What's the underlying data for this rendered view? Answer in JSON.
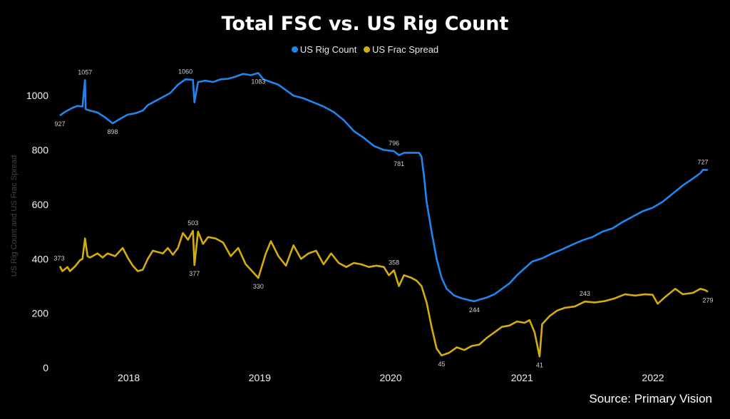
{
  "chart_data": {
    "type": "line",
    "title": "Total FSC vs. US Rig Count",
    "ylabel": "US Rig Count and US Frac Spread",
    "xlabel": "",
    "ylim": [
      0,
      1100
    ],
    "y_ticks": [
      0,
      200,
      400,
      600,
      800,
      1000
    ],
    "x_ticks": [
      "2018",
      "2019",
      "2020",
      "2021",
      "2022"
    ],
    "x_range": [
      "2017-06-23",
      "2022-06-03"
    ],
    "grid": false,
    "legend": "top-center",
    "source": "Source: Primary Vision",
    "series": [
      {
        "name": "US Rig Count",
        "color": "#1f86f0",
        "points": [
          [
            "2017-06-23",
            927
          ],
          [
            "2017-07-07",
            940
          ],
          [
            "2017-07-28",
            955
          ],
          [
            "2017-08-11",
            962
          ],
          [
            "2017-08-25",
            960
          ],
          [
            "2017-09-01",
            1057
          ],
          [
            "2017-09-03",
            950
          ],
          [
            "2017-09-15",
            945
          ],
          [
            "2017-10-06",
            938
          ],
          [
            "2017-10-27",
            920
          ],
          [
            "2017-11-17",
            898
          ],
          [
            "2017-12-08",
            915
          ],
          [
            "2017-12-29",
            930
          ],
          [
            "2018-01-19",
            935
          ],
          [
            "2018-02-09",
            945
          ],
          [
            "2018-02-23",
            965
          ],
          [
            "2018-03-16",
            980
          ],
          [
            "2018-04-06",
            995
          ],
          [
            "2018-04-27",
            1010
          ],
          [
            "2018-05-18",
            1040
          ],
          [
            "2018-06-08",
            1060
          ],
          [
            "2018-06-29",
            1058
          ],
          [
            "2018-07-03",
            975
          ],
          [
            "2018-07-13",
            1050
          ],
          [
            "2018-08-03",
            1055
          ],
          [
            "2018-08-24",
            1050
          ],
          [
            "2018-09-14",
            1060
          ],
          [
            "2018-10-05",
            1062
          ],
          [
            "2018-10-26",
            1070
          ],
          [
            "2018-11-16",
            1080
          ],
          [
            "2018-12-07",
            1075
          ],
          [
            "2018-12-28",
            1083
          ],
          [
            "2019-01-11",
            1060
          ],
          [
            "2019-02-01",
            1050
          ],
          [
            "2019-02-22",
            1040
          ],
          [
            "2019-03-15",
            1020
          ],
          [
            "2019-04-05",
            1000
          ],
          [
            "2019-05-03",
            990
          ],
          [
            "2019-05-31",
            975
          ],
          [
            "2019-06-28",
            960
          ],
          [
            "2019-07-26",
            940
          ],
          [
            "2019-08-23",
            910
          ],
          [
            "2019-09-20",
            870
          ],
          [
            "2019-10-18",
            845
          ],
          [
            "2019-11-15",
            815
          ],
          [
            "2019-12-13",
            800
          ],
          [
            "2020-01-10",
            796
          ],
          [
            "2020-01-24",
            781
          ],
          [
            "2020-02-07",
            790
          ],
          [
            "2020-02-28",
            790
          ],
          [
            "2020-03-20",
            790
          ],
          [
            "2020-03-27",
            775
          ],
          [
            "2020-04-03",
            700
          ],
          [
            "2020-04-10",
            610
          ],
          [
            "2020-04-24",
            500
          ],
          [
            "2020-05-08",
            400
          ],
          [
            "2020-05-22",
            330
          ],
          [
            "2020-06-05",
            290
          ],
          [
            "2020-06-26",
            265
          ],
          [
            "2020-07-17",
            255
          ],
          [
            "2020-08-07",
            248
          ],
          [
            "2020-08-21",
            244
          ],
          [
            "2020-09-04",
            250
          ],
          [
            "2020-09-25",
            258
          ],
          [
            "2020-10-16",
            270
          ],
          [
            "2020-11-06",
            290
          ],
          [
            "2020-11-27",
            310
          ],
          [
            "2020-12-18",
            340
          ],
          [
            "2021-01-08",
            365
          ],
          [
            "2021-01-29",
            390
          ],
          [
            "2021-02-26",
            402
          ],
          [
            "2021-03-26",
            420
          ],
          [
            "2021-04-23",
            435
          ],
          [
            "2021-05-21",
            452
          ],
          [
            "2021-06-18",
            468
          ],
          [
            "2021-07-16",
            480
          ],
          [
            "2021-08-13",
            500
          ],
          [
            "2021-09-10",
            512
          ],
          [
            "2021-10-08",
            535
          ],
          [
            "2021-11-05",
            555
          ],
          [
            "2021-12-03",
            575
          ],
          [
            "2021-12-31",
            588
          ],
          [
            "2022-01-28",
            610
          ],
          [
            "2022-02-25",
            640
          ],
          [
            "2022-03-25",
            670
          ],
          [
            "2022-04-22",
            695
          ],
          [
            "2022-05-13",
            715
          ],
          [
            "2022-05-20",
            727
          ],
          [
            "2022-06-03",
            727
          ]
        ],
        "labels": [
          {
            "date": "2017-06-23",
            "value": 927,
            "text": "927",
            "pos": "below"
          },
          {
            "date": "2017-09-01",
            "value": 1057,
            "text": "1057",
            "pos": "above"
          },
          {
            "date": "2017-11-17",
            "value": 898,
            "text": "898",
            "pos": "below"
          },
          {
            "date": "2018-06-08",
            "value": 1060,
            "text": "1060",
            "pos": "above"
          },
          {
            "date": "2018-12-28",
            "value": 1083,
            "text": "1083",
            "pos": "below"
          },
          {
            "date": "2020-01-10",
            "value": 796,
            "text": "796",
            "pos": "above"
          },
          {
            "date": "2020-01-24",
            "value": 781,
            "text": "781",
            "pos": "below"
          },
          {
            "date": "2020-08-21",
            "value": 244,
            "text": "244",
            "pos": "below"
          },
          {
            "date": "2022-05-20",
            "value": 727,
            "text": "727",
            "pos": "above"
          }
        ]
      },
      {
        "name": "US Frac Spread",
        "color": "#d4ac0d",
        "points": [
          [
            "2017-06-23",
            373
          ],
          [
            "2017-06-30",
            355
          ],
          [
            "2017-07-14",
            370
          ],
          [
            "2017-07-21",
            355
          ],
          [
            "2017-08-04",
            372
          ],
          [
            "2017-08-18",
            395
          ],
          [
            "2017-08-25",
            400
          ],
          [
            "2017-09-01",
            475
          ],
          [
            "2017-09-08",
            410
          ],
          [
            "2017-09-15",
            405
          ],
          [
            "2017-10-06",
            420
          ],
          [
            "2017-10-20",
            405
          ],
          [
            "2017-11-03",
            420
          ],
          [
            "2017-11-24",
            410
          ],
          [
            "2017-12-15",
            440
          ],
          [
            "2017-12-29",
            405
          ],
          [
            "2018-01-12",
            375
          ],
          [
            "2018-01-26",
            355
          ],
          [
            "2018-02-09",
            360
          ],
          [
            "2018-02-23",
            400
          ],
          [
            "2018-03-09",
            430
          ],
          [
            "2018-03-23",
            425
          ],
          [
            "2018-04-06",
            420
          ],
          [
            "2018-04-20",
            440
          ],
          [
            "2018-05-04",
            415
          ],
          [
            "2018-05-18",
            440
          ],
          [
            "2018-06-01",
            495
          ],
          [
            "2018-06-15",
            470
          ],
          [
            "2018-06-29",
            503
          ],
          [
            "2018-07-03",
            377
          ],
          [
            "2018-07-13",
            500
          ],
          [
            "2018-07-27",
            455
          ],
          [
            "2018-08-10",
            480
          ],
          [
            "2018-08-31",
            475
          ],
          [
            "2018-09-21",
            460
          ],
          [
            "2018-10-12",
            410
          ],
          [
            "2018-11-02",
            440
          ],
          [
            "2018-11-23",
            380
          ],
          [
            "2018-12-07",
            360
          ],
          [
            "2018-12-28",
            330
          ],
          [
            "2019-01-18",
            420
          ],
          [
            "2019-02-01",
            465
          ],
          [
            "2019-02-22",
            410
          ],
          [
            "2019-03-15",
            375
          ],
          [
            "2019-04-05",
            450
          ],
          [
            "2019-04-26",
            400
          ],
          [
            "2019-05-17",
            420
          ],
          [
            "2019-06-07",
            430
          ],
          [
            "2019-06-28",
            380
          ],
          [
            "2019-07-19",
            420
          ],
          [
            "2019-08-09",
            385
          ],
          [
            "2019-08-30",
            370
          ],
          [
            "2019-09-20",
            385
          ],
          [
            "2019-10-11",
            380
          ],
          [
            "2019-11-01",
            370
          ],
          [
            "2019-11-22",
            375
          ],
          [
            "2019-12-13",
            370
          ],
          [
            "2019-12-27",
            340
          ],
          [
            "2020-01-10",
            358
          ],
          [
            "2020-01-24",
            300
          ],
          [
            "2020-02-07",
            340
          ],
          [
            "2020-02-28",
            330
          ],
          [
            "2020-03-13",
            320
          ],
          [
            "2020-03-27",
            300
          ],
          [
            "2020-04-10",
            240
          ],
          [
            "2020-04-24",
            150
          ],
          [
            "2020-05-08",
            70
          ],
          [
            "2020-05-22",
            45
          ],
          [
            "2020-06-12",
            55
          ],
          [
            "2020-07-03",
            75
          ],
          [
            "2020-07-24",
            65
          ],
          [
            "2020-08-14",
            80
          ],
          [
            "2020-09-04",
            85
          ],
          [
            "2020-09-25",
            110
          ],
          [
            "2020-10-16",
            130
          ],
          [
            "2020-11-06",
            150
          ],
          [
            "2020-11-27",
            155
          ],
          [
            "2020-12-18",
            170
          ],
          [
            "2021-01-08",
            165
          ],
          [
            "2021-01-22",
            175
          ],
          [
            "2021-02-05",
            130
          ],
          [
            "2021-02-19",
            41
          ],
          [
            "2021-02-26",
            160
          ],
          [
            "2021-03-19",
            190
          ],
          [
            "2021-04-09",
            210
          ],
          [
            "2021-04-30",
            220
          ],
          [
            "2021-05-28",
            225
          ],
          [
            "2021-06-25",
            243
          ],
          [
            "2021-07-23",
            240
          ],
          [
            "2021-08-20",
            245
          ],
          [
            "2021-09-17",
            255
          ],
          [
            "2021-10-15",
            270
          ],
          [
            "2021-11-12",
            265
          ],
          [
            "2021-12-10",
            270
          ],
          [
            "2021-12-31",
            268
          ],
          [
            "2022-01-14",
            235
          ],
          [
            "2022-02-04",
            260
          ],
          [
            "2022-03-04",
            290
          ],
          [
            "2022-03-25",
            270
          ],
          [
            "2022-04-22",
            275
          ],
          [
            "2022-05-13",
            290
          ],
          [
            "2022-05-27",
            285
          ],
          [
            "2022-06-03",
            279
          ]
        ],
        "labels": [
          {
            "date": "2017-06-23",
            "value": 373,
            "text": "373",
            "pos": "above-left"
          },
          {
            "date": "2018-06-29",
            "value": 503,
            "text": "503",
            "pos": "above"
          },
          {
            "date": "2018-07-03",
            "value": 377,
            "text": "377",
            "pos": "below"
          },
          {
            "date": "2018-12-28",
            "value": 330,
            "text": "330",
            "pos": "below"
          },
          {
            "date": "2020-01-10",
            "value": 358,
            "text": "358",
            "pos": "above"
          },
          {
            "date": "2020-05-22",
            "value": 45,
            "text": "45",
            "pos": "below"
          },
          {
            "date": "2021-02-19",
            "value": 41,
            "text": "41",
            "pos": "below"
          },
          {
            "date": "2021-06-25",
            "value": 243,
            "text": "243",
            "pos": "above"
          },
          {
            "date": "2022-06-03",
            "value": 279,
            "text": "279",
            "pos": "below"
          }
        ]
      }
    ]
  }
}
